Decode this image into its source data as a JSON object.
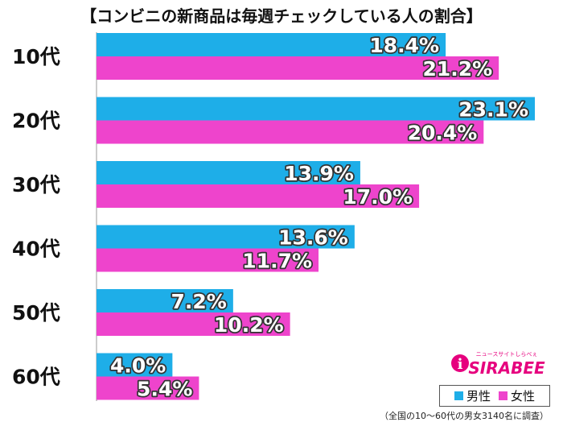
{
  "chart_data": {
    "type": "bar",
    "orientation": "horizontal",
    "title": "【コンビニの新商品は毎週チェックしている人の割合】",
    "categories": [
      "10代",
      "20代",
      "30代",
      "40代",
      "50代",
      "60代"
    ],
    "series": [
      {
        "name": "男性",
        "color": "#1eaee8",
        "values": [
          18.4,
          23.1,
          13.9,
          13.6,
          7.2,
          4.0
        ],
        "labels": [
          "18.4%",
          "23.1%",
          "13.9%",
          "13.6%",
          "7.2%",
          "4.0%"
        ]
      },
      {
        "name": "女性",
        "color": "#ee44cc",
        "values": [
          21.2,
          20.4,
          17.0,
          11.7,
          10.2,
          5.4
        ],
        "labels": [
          "21.2%",
          "20.4%",
          "17.0%",
          "11.7%",
          "10.2%",
          "5.4%"
        ]
      }
    ],
    "xlim": [
      0,
      23.1
    ],
    "grid": false,
    "legend": "bottom-right"
  },
  "logo": {
    "main": "SIRABEE",
    "sub": "ニュースサイトしらべぇ",
    "color": "#e6007e"
  },
  "footnote": "（全国の10〜60代の男女3140名に調査）"
}
